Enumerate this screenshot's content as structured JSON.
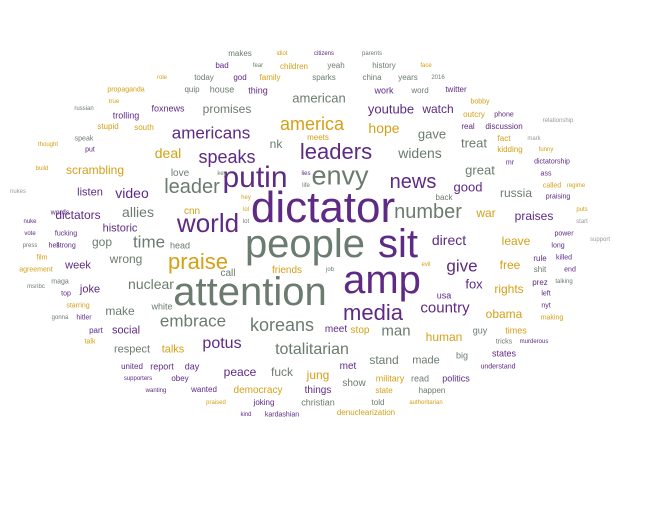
{
  "title": "",
  "palette": {
    "purple": "#5e2a84",
    "gray": "#6b7b6f",
    "gold": "#d4a017",
    "light": "#9a9a9a"
  },
  "words": [
    {
      "t": "dictator",
      "c": "c1"
    },
    {
      "t": "attention",
      "c": "c2"
    },
    {
      "t": "amp",
      "c": "c1"
    },
    {
      "t": "people",
      "c": "c2"
    },
    {
      "t": "sit",
      "c": "c1"
    },
    {
      "t": "putin",
      "c": "c1"
    },
    {
      "t": "envy",
      "c": "c2"
    },
    {
      "t": "leaders",
      "c": "c1"
    },
    {
      "t": "world",
      "c": "c1"
    },
    {
      "t": "praise",
      "c": "c3"
    },
    {
      "t": "media",
      "c": "c1"
    },
    {
      "t": "number",
      "c": "c2"
    },
    {
      "t": "news",
      "c": "c1"
    },
    {
      "t": "speaks",
      "c": "c1"
    },
    {
      "t": "leader",
      "c": "c2"
    },
    {
      "t": "america",
      "c": "c3"
    },
    {
      "t": "koreans",
      "c": "c2"
    },
    {
      "t": "americans",
      "c": "c1"
    },
    {
      "t": "embrace",
      "c": "c2"
    },
    {
      "t": "totalitarian",
      "c": "c2"
    },
    {
      "t": "time",
      "c": "c2"
    },
    {
      "t": "give",
      "c": "c1"
    },
    {
      "t": "country",
      "c": "c1"
    },
    {
      "t": "potus",
      "c": "c1"
    },
    {
      "t": "direct",
      "c": "c1"
    },
    {
      "t": "man",
      "c": "c2"
    },
    {
      "t": "nuclear",
      "c": "c2"
    },
    {
      "t": "allies",
      "c": "c2"
    },
    {
      "t": "video",
      "c": "c1"
    },
    {
      "t": "widens",
      "c": "c2"
    },
    {
      "t": "hope",
      "c": "c3"
    },
    {
      "t": "deal",
      "c": "c3"
    },
    {
      "t": "american",
      "c": "c2"
    },
    {
      "t": "good",
      "c": "c1"
    },
    {
      "t": "great",
      "c": "c2"
    },
    {
      "t": "fox",
      "c": "c1"
    },
    {
      "t": "gave",
      "c": "c2"
    },
    {
      "t": "treat",
      "c": "c2"
    },
    {
      "t": "nk",
      "c": "c2"
    },
    {
      "t": "youtube",
      "c": "c1"
    },
    {
      "t": "watch",
      "c": "c1"
    },
    {
      "t": "promises",
      "c": "c2"
    },
    {
      "t": "scrambling",
      "c": "c3"
    },
    {
      "t": "dictators",
      "c": "c1"
    },
    {
      "t": "russia",
      "c": "c2"
    },
    {
      "t": "war",
      "c": "c3"
    },
    {
      "t": "praises",
      "c": "c1"
    },
    {
      "t": "leave",
      "c": "c3"
    },
    {
      "t": "free",
      "c": "c3"
    },
    {
      "t": "wrong",
      "c": "c2"
    },
    {
      "t": "gop",
      "c": "c2"
    },
    {
      "t": "make",
      "c": "c2"
    },
    {
      "t": "peace",
      "c": "c1"
    },
    {
      "t": "fuck",
      "c": "c2"
    },
    {
      "t": "jung",
      "c": "c3"
    },
    {
      "t": "stand",
      "c": "c2"
    },
    {
      "t": "made",
      "c": "c2"
    },
    {
      "t": "human",
      "c": "c3"
    },
    {
      "t": "rights",
      "c": "c3"
    },
    {
      "t": "obama",
      "c": "c3"
    },
    {
      "t": "historic",
      "c": "c1"
    },
    {
      "t": "listen",
      "c": "c1"
    },
    {
      "t": "joke",
      "c": "c1"
    },
    {
      "t": "week",
      "c": "c1"
    },
    {
      "t": "talks",
      "c": "c3"
    },
    {
      "t": "respect",
      "c": "c2"
    },
    {
      "t": "social",
      "c": "c1"
    },
    {
      "t": "friends",
      "c": "c3"
    },
    {
      "t": "call",
      "c": "c2"
    },
    {
      "t": "cnn",
      "c": "c3"
    },
    {
      "t": "love",
      "c": "c2"
    },
    {
      "t": "stop",
      "c": "c3"
    },
    {
      "t": "meet",
      "c": "c1"
    },
    {
      "t": "show",
      "c": "c2"
    },
    {
      "t": "met",
      "c": "c1"
    },
    {
      "t": "democracy",
      "c": "c3"
    },
    {
      "t": "things",
      "c": "c1"
    },
    {
      "t": "christian",
      "c": "c2"
    },
    {
      "t": "guy",
      "c": "c2"
    },
    {
      "t": "big",
      "c": "c2"
    },
    {
      "t": "times",
      "c": "c3"
    },
    {
      "t": "states",
      "c": "c1"
    },
    {
      "t": "military",
      "c": "c3"
    },
    {
      "t": "read",
      "c": "c2"
    },
    {
      "t": "politics",
      "c": "c1"
    },
    {
      "t": "usa",
      "c": "c1"
    },
    {
      "t": "white",
      "c": "c2"
    },
    {
      "t": "head",
      "c": "c2"
    },
    {
      "t": "part",
      "c": "c1"
    },
    {
      "t": "report",
      "c": "c1"
    },
    {
      "t": "day",
      "c": "c1"
    },
    {
      "t": "united",
      "c": "c1"
    },
    {
      "t": "obey",
      "c": "c1"
    },
    {
      "t": "wanted",
      "c": "c1"
    },
    {
      "t": "joking",
      "c": "c1"
    },
    {
      "t": "state",
      "c": "c3"
    },
    {
      "t": "happen",
      "c": "c2"
    },
    {
      "t": "told",
      "c": "c2"
    },
    {
      "t": "denuclearization",
      "c": "c3"
    },
    {
      "t": "kardashian",
      "c": "c1"
    },
    {
      "t": "foxnews",
      "c": "c1"
    },
    {
      "t": "trolling",
      "c": "c1"
    },
    {
      "t": "stupid",
      "c": "c3"
    },
    {
      "t": "south",
      "c": "c3"
    },
    {
      "t": "quip",
      "c": "c2"
    },
    {
      "t": "house",
      "c": "c2"
    },
    {
      "t": "today",
      "c": "c2"
    },
    {
      "t": "god",
      "c": "c1"
    },
    {
      "t": "family",
      "c": "c3"
    },
    {
      "t": "thing",
      "c": "c1"
    },
    {
      "t": "sparks",
      "c": "c2"
    },
    {
      "t": "china",
      "c": "c2"
    },
    {
      "t": "work",
      "c": "c1"
    },
    {
      "t": "years",
      "c": "c2"
    },
    {
      "t": "word",
      "c": "c2"
    },
    {
      "t": "history",
      "c": "c2"
    },
    {
      "t": "yeah",
      "c": "c2"
    },
    {
      "t": "children",
      "c": "c3"
    },
    {
      "t": "bad",
      "c": "c1"
    },
    {
      "t": "makes",
      "c": "c2"
    },
    {
      "t": "twitter",
      "c": "c1"
    },
    {
      "t": "bobby",
      "c": "c3"
    },
    {
      "t": "outcry",
      "c": "c3"
    },
    {
      "t": "real",
      "c": "c1"
    },
    {
      "t": "discussion",
      "c": "c1"
    },
    {
      "t": "fact",
      "c": "c3"
    },
    {
      "t": "kidding",
      "c": "c3"
    },
    {
      "t": "meets",
      "c": "c3"
    },
    {
      "t": "phone",
      "c": "c1"
    },
    {
      "t": "mr",
      "c": "c1"
    },
    {
      "t": "ass",
      "c": "c1"
    },
    {
      "t": "dictatorship",
      "c": "c1"
    },
    {
      "t": "called",
      "c": "c3"
    },
    {
      "t": "praising",
      "c": "c1"
    },
    {
      "t": "back",
      "c": "c2"
    },
    {
      "t": "rule",
      "c": "c1"
    },
    {
      "t": "killed",
      "c": "c1"
    },
    {
      "t": "long",
      "c": "c1"
    },
    {
      "t": "power",
      "c": "c1"
    },
    {
      "t": "shit",
      "c": "c2"
    },
    {
      "t": "end",
      "c": "c1"
    },
    {
      "t": "nyt",
      "c": "c1"
    },
    {
      "t": "prez",
      "c": "c1"
    },
    {
      "t": "left",
      "c": "c1"
    },
    {
      "t": "making",
      "c": "c3"
    },
    {
      "t": "tricks",
      "c": "c2"
    },
    {
      "t": "murderous",
      "c": "c1"
    },
    {
      "t": "understand",
      "c": "c1"
    },
    {
      "t": "supporters",
      "c": "c1"
    },
    {
      "t": "wanting",
      "c": "c1"
    },
    {
      "t": "praised",
      "c": "c3"
    },
    {
      "t": "kind",
      "c": "c1"
    },
    {
      "t": "authoritarian",
      "c": "c3"
    },
    {
      "t": "maga",
      "c": "c2"
    },
    {
      "t": "fucking",
      "c": "c1"
    },
    {
      "t": "hell",
      "c": "c1"
    },
    {
      "t": "words",
      "c": "c1"
    },
    {
      "t": "strong",
      "c": "c1"
    },
    {
      "t": "agreement",
      "c": "c3"
    },
    {
      "t": "hitler",
      "c": "c1"
    },
    {
      "t": "starring",
      "c": "c3"
    },
    {
      "t": "talk",
      "c": "c3"
    },
    {
      "t": "top",
      "c": "c1"
    },
    {
      "t": "film",
      "c": "c3"
    },
    {
      "t": "gonna",
      "c": "c2"
    },
    {
      "t": "nuke",
      "c": "c1"
    },
    {
      "t": "vote",
      "c": "c1"
    },
    {
      "t": "press",
      "c": "c2"
    },
    {
      "t": "msnbc",
      "c": "c2"
    },
    {
      "t": "build",
      "c": "c3"
    },
    {
      "t": "nukes",
      "c": "c4"
    },
    {
      "t": "thought",
      "c": "c3"
    },
    {
      "t": "russian",
      "c": "c2"
    },
    {
      "t": "true",
      "c": "c3"
    },
    {
      "t": "propaganda",
      "c": "c3"
    },
    {
      "t": "role",
      "c": "c3"
    },
    {
      "t": "speak",
      "c": "c2"
    },
    {
      "t": "put",
      "c": "c1"
    },
    {
      "t": "relationship",
      "c": "c4"
    },
    {
      "t": "mark",
      "c": "c4"
    },
    {
      "t": "funny",
      "c": "c3"
    },
    {
      "t": "regime",
      "c": "c3"
    },
    {
      "t": "puts",
      "c": "c3"
    },
    {
      "t": "start",
      "c": "c4"
    },
    {
      "t": "support",
      "c": "c4"
    },
    {
      "t": "talking",
      "c": "c2"
    },
    {
      "t": "idiot",
      "c": "c3"
    },
    {
      "t": "citizens",
      "c": "c1"
    },
    {
      "t": "parents",
      "c": "c2"
    },
    {
      "t": "fear",
      "c": "c2"
    },
    {
      "t": "face",
      "c": "c3"
    },
    {
      "t": "2016",
      "c": "c2"
    },
    {
      "t": "lies",
      "c": "c1"
    },
    {
      "t": "life",
      "c": "c2"
    },
    {
      "t": "key",
      "c": "c2"
    },
    {
      "t": "hey",
      "c": "c3"
    },
    {
      "t": "lol",
      "c": "c3"
    },
    {
      "t": "lot",
      "c": "c2"
    },
    {
      "t": "job",
      "c": "c2"
    },
    {
      "t": "evil",
      "c": "c3"
    }
  ]
}
